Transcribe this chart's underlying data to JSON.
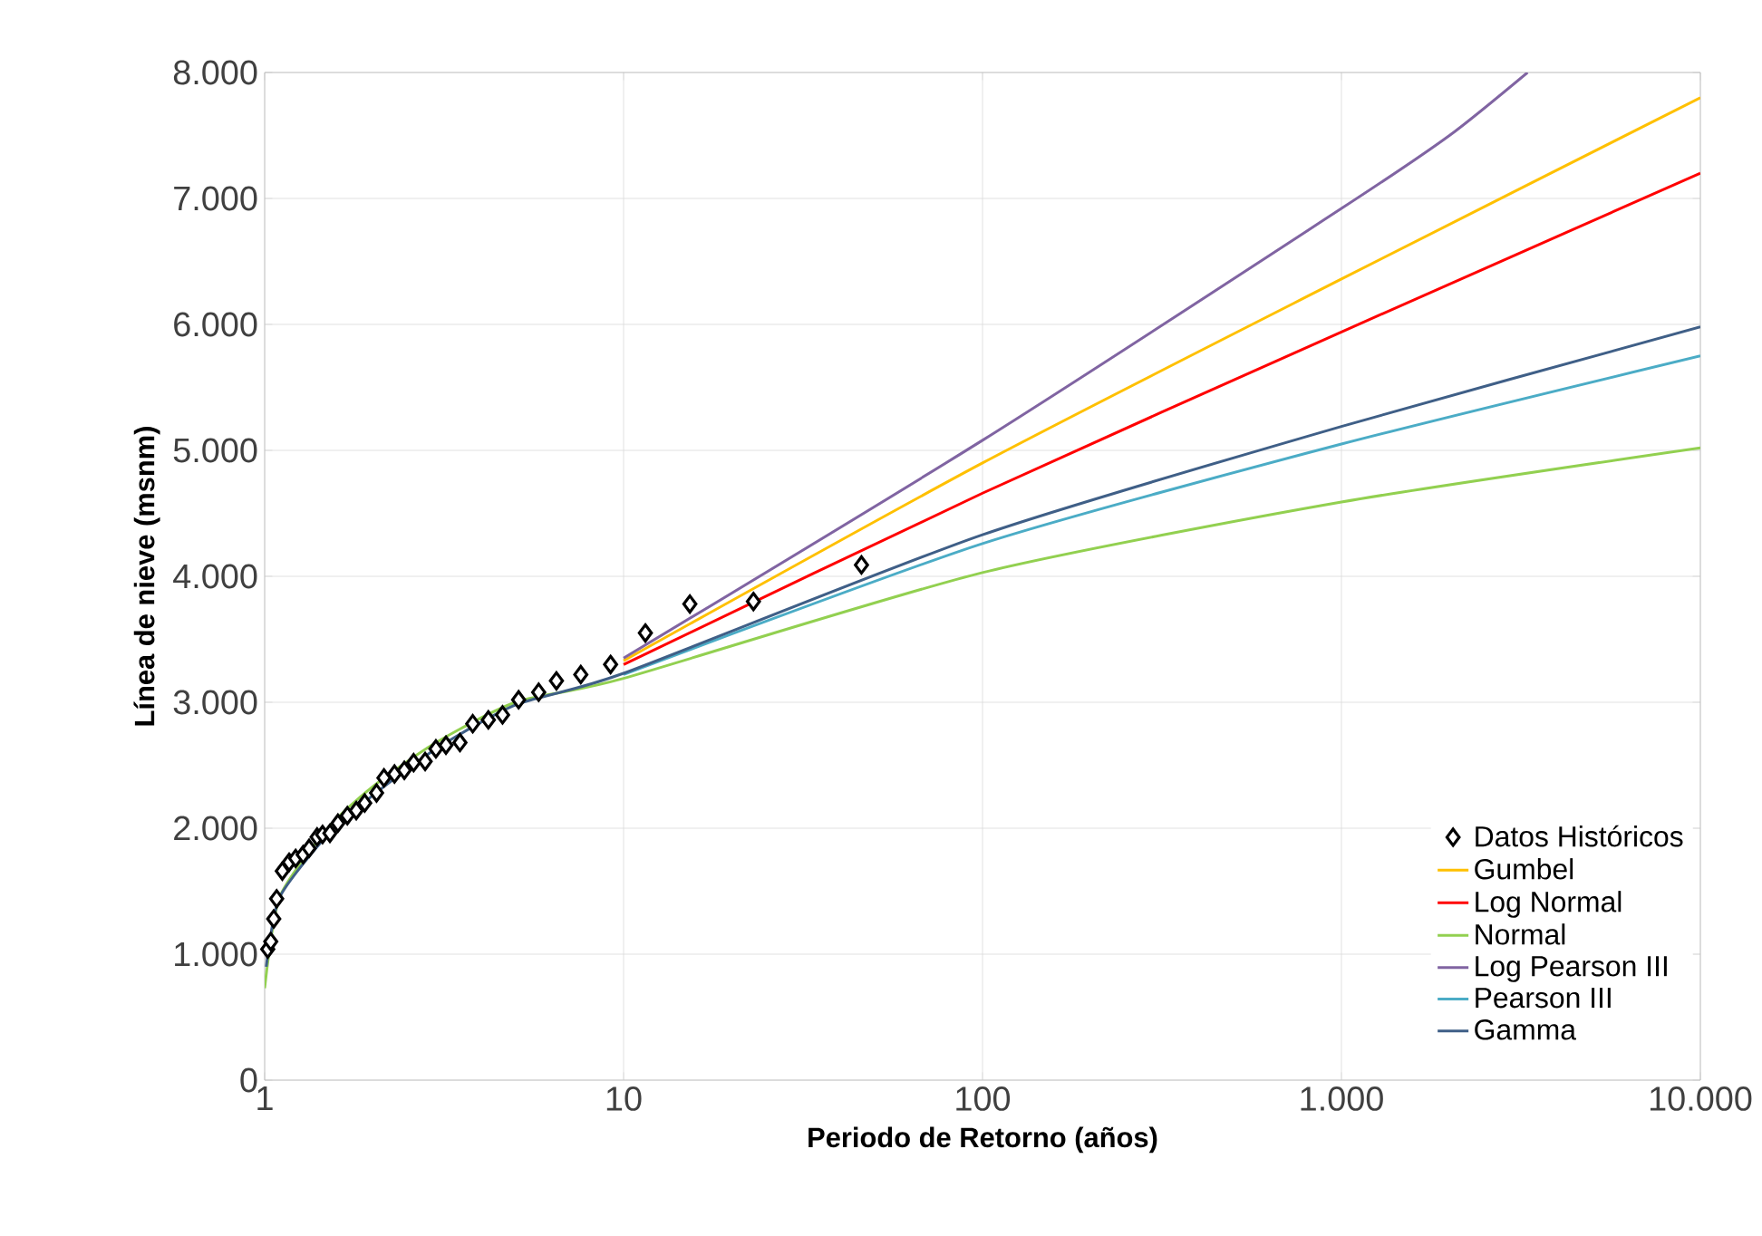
{
  "chart_data": {
    "type": "line",
    "xlabel": "Periodo de Retorno (años)",
    "ylabel": "Línea de nieve (msnm)",
    "log": "x",
    "grid": true,
    "legend": "bottom right",
    "marker": "none",
    "xlim": [
      1,
      10000
    ],
    "ylim": [
      0,
      8000
    ],
    "xticks": [
      1,
      10,
      100,
      {
        "value": 1000,
        "label": "1.000"
      },
      {
        "value": 10000,
        "label": "10.000"
      }
    ],
    "yticks": [
      0,
      {
        "value": 1000,
        "label": "1.000"
      },
      {
        "value": 2000,
        "label": "2.000"
      },
      {
        "value": 3000,
        "label": "3.000"
      },
      {
        "value": 4000,
        "label": "4.000"
      },
      {
        "value": 5000,
        "label": "5.000"
      },
      {
        "value": 6000,
        "label": "6.000"
      },
      {
        "value": 7000,
        "label": "7.000"
      },
      {
        "value": 8000,
        "label": "8.000"
      }
    ],
    "series": [
      {
        "name": "Datos Históricos",
        "type": "scatter",
        "marker": "diamond",
        "color": "#000000",
        "x": [
          1.02,
          1.04,
          1.06,
          1.08,
          1.12,
          1.17,
          1.22,
          1.28,
          1.33,
          1.4,
          1.45,
          1.52,
          1.6,
          1.7,
          1.8,
          1.9,
          2.05,
          2.15,
          2.3,
          2.45,
          2.6,
          2.8,
          3.0,
          3.2,
          3.5,
          3.8,
          4.2,
          4.6,
          5.1,
          5.8,
          6.5,
          7.6,
          9.2,
          11.5,
          15.3,
          23,
          46
        ],
        "values": [
          1040,
          1100,
          1280,
          1440,
          1660,
          1730,
          1760,
          1790,
          1840,
          1930,
          1950,
          1960,
          2040,
          2100,
          2140,
          2200,
          2280,
          2400,
          2430,
          2460,
          2520,
          2530,
          2630,
          2660,
          2680,
          2830,
          2860,
          2900,
          3020,
          3080,
          3170,
          3220,
          3300,
          3550,
          3780,
          3800,
          4090
        ]
      },
      {
        "name": "Gumbel",
        "color": "#ffc000",
        "x": [
          10,
          100,
          1000,
          10000
        ],
        "values": [
          3330,
          4900,
          6360,
          7800
        ]
      },
      {
        "name": "Log Normal",
        "color": "#ff0000",
        "x": [
          10,
          100,
          1000,
          10000
        ],
        "values": [
          3300,
          4660,
          5940,
          7200
        ]
      },
      {
        "name": "Normal",
        "color": "#92d050",
        "x": [
          1,
          1.1,
          1.5,
          2,
          3,
          5,
          10,
          100,
          1000,
          10000
        ],
        "values": [
          730,
          1450,
          2000,
          2330,
          2680,
          3000,
          3190,
          4030,
          4590,
          5020
        ]
      },
      {
        "name": "Log Pearson III",
        "color": "#8064a2",
        "x": [
          10,
          100,
          1000,
          2000,
          3300
        ],
        "values": [
          3350,
          5080,
          6920,
          7500,
          8000
        ]
      },
      {
        "name": "Pearson III",
        "color": "#4bacc6",
        "x": [
          10,
          100,
          1000,
          10000
        ],
        "values": [
          3220,
          4260,
          5050,
          5750
        ]
      },
      {
        "name": "Gamma",
        "color": "#3f5f87",
        "x": [
          1.01,
          1.1,
          1.5,
          2,
          3,
          5,
          10,
          100,
          1000,
          10000
        ],
        "values": [
          900,
          1450,
          1950,
          2260,
          2630,
          2980,
          3230,
          4330,
          5190,
          5980
        ]
      }
    ]
  }
}
